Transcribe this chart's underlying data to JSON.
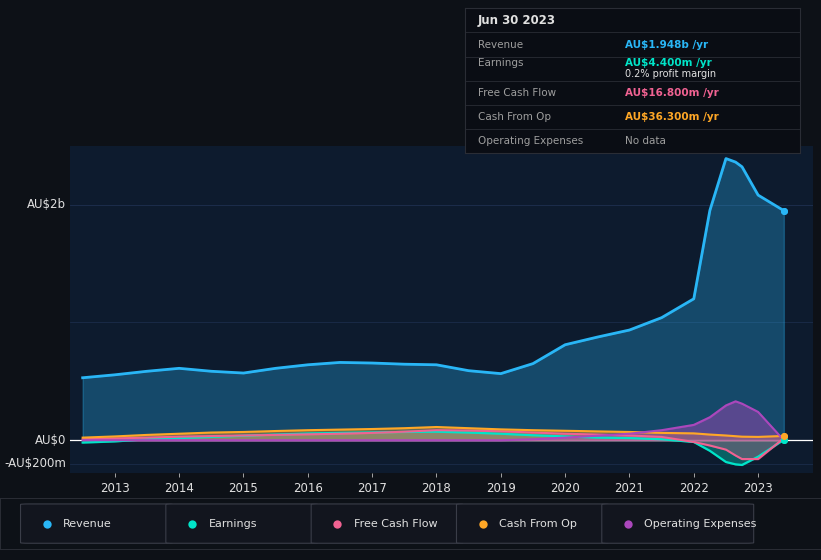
{
  "background_color": "#0d1117",
  "plot_bg_color": "#0d1b2e",
  "grid_color": "#1e3050",
  "zero_line_color": "#ffffff",
  "title_text": "Jun 30 2023",
  "ylabel_top": "AU$2b",
  "ylabel_bottom": "-AU$200m",
  "ylabel_zero": "AU$0",
  "revenue_color": "#29b6f6",
  "earnings_color": "#00e5c9",
  "fcf_color": "#f06292",
  "cashop_color": "#ffa726",
  "opex_color": "#ab47bc",
  "tooltip_bg": "#0a0d14",
  "tooltip_border": "#2a2d35",
  "text_color_dim": "#9e9e9e",
  "text_color_white": "#e0e0e0",
  "revenue_value": "AU$1.948b",
  "earnings_value": "AU$4.400m",
  "fcf_value": "AU$16.800m",
  "cashop_value": "AU$36.300m",
  "opex_value": "No data"
}
